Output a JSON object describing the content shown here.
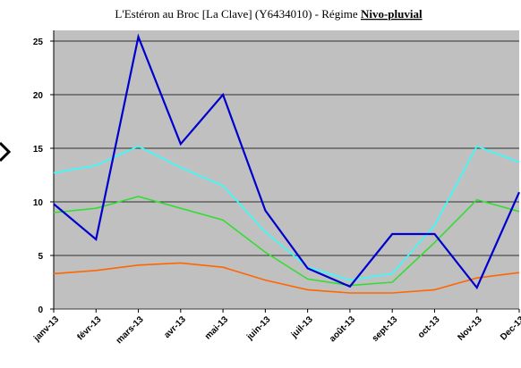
{
  "chart_data": {
    "type": "line",
    "title": [
      "L'Estéron au Broc [La Clave] (Y6434010) - Régime",
      "Nivo-pluvial"
    ],
    "categories": [
      "janv-13",
      "févr-13",
      "mars-13",
      "avr-13",
      "mai-13",
      "juin-13",
      "juil-13",
      "août-13",
      "sept-13",
      "oct-13",
      "Nov-13",
      "Dec-13"
    ],
    "series": [
      {
        "color": "#ff6600",
        "values": [
          3.3,
          3.6,
          4.1,
          4.3,
          3.9,
          2.7,
          1.8,
          1.5,
          1.5,
          1.8,
          2.9,
          3.4
        ]
      },
      {
        "color": "#33dd33",
        "values": [
          9.0,
          9.4,
          10.5,
          9.4,
          8.3,
          5.3,
          2.8,
          2.2,
          2.5,
          6.2,
          10.2,
          9.1
        ]
      },
      {
        "color": "#33ffff",
        "values": [
          12.7,
          13.4,
          15.2,
          13.2,
          11.5,
          7.2,
          3.9,
          2.7,
          3.3,
          7.8,
          15.2,
          13.7
        ]
      },
      {
        "color": "#0000cc",
        "values": [
          9.8,
          6.5,
          25.4,
          15.4,
          20.0,
          9.2,
          3.8,
          2.1,
          7.0,
          7.0,
          2.0,
          10.9
        ]
      }
    ],
    "ylim": [
      0,
      26
    ],
    "yticks": [
      0,
      5,
      10,
      15,
      20,
      25
    ],
    "grid": true,
    "plot_color": "#c0c0c0"
  }
}
